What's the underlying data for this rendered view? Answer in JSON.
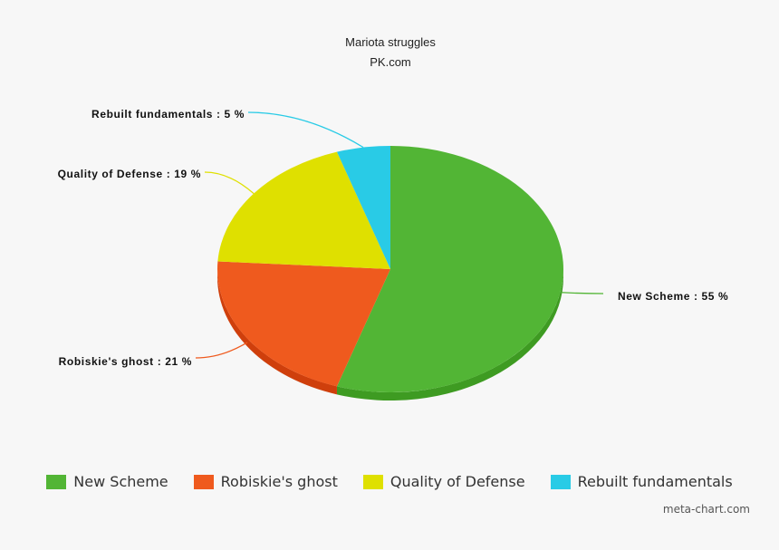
{
  "chart_data": {
    "type": "pie",
    "title": "Mariota struggles",
    "subtitle": "PK.com",
    "slices": [
      {
        "name": "New Scheme",
        "value": 55,
        "color": "#52b535",
        "side": "#3e9b22",
        "label": "New Scheme  : 55 %"
      },
      {
        "name": "Robiskie's ghost",
        "value": 21,
        "color": "#ef5a1e",
        "side": "#cf3f0c",
        "label": "Robiskie's ghost : 21 %"
      },
      {
        "name": "Quality of Defense",
        "value": 19,
        "color": "#dfe000",
        "side": "#b9ba00",
        "label": "Quality of Defense : 19 %"
      },
      {
        "name": "Rebuilt fundamentals",
        "value": 5,
        "color": "#29cbe6",
        "side": "#16a9c2",
        "label": "Rebuilt fundamentals : 5 %"
      }
    ],
    "legend_position": "bottom"
  },
  "credit": "meta-chart.com"
}
